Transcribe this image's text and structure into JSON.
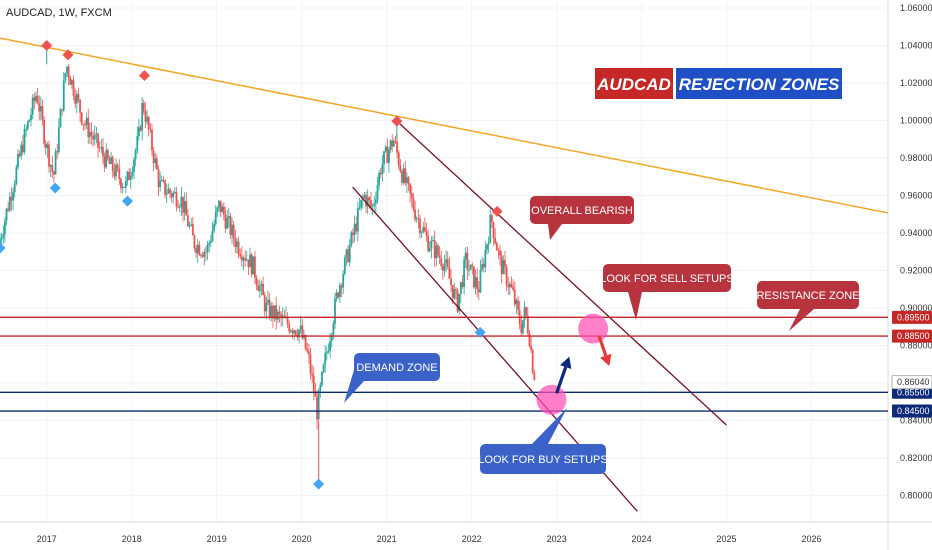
{
  "header": {
    "symbol_label": "AUDCAD, 1W, FXCM"
  },
  "title": {
    "part1": "AUDCAD",
    "part2": "REJECTION ZONES",
    "color1": "#c62828",
    "color2": "#1e4fc4"
  },
  "colors": {
    "up": "#26a69a",
    "down": "#ef5350",
    "trendline": "#f5a623",
    "channel": "#7b0f1f",
    "resistance": "#c62828",
    "demand": "#0d2a7a",
    "callout_red": "#b7343f",
    "callout_blue": "#3a62c9",
    "marker_red": "#ef5350",
    "marker_blue": "#42a5f5",
    "circle": "#ff4fb4"
  },
  "chart_data": {
    "type": "candlestick",
    "symbol": "AUDCAD",
    "timeframe": "1W",
    "source": "FXCM",
    "xlim": [
      2016.45,
      2026.9
    ],
    "ylim": [
      0.7858,
      1.0643
    ],
    "y_ticks": [
      1.06,
      1.04,
      1.02,
      1.0,
      0.98,
      0.96,
      0.94,
      0.92,
      0.9,
      0.88,
      0.86,
      0.84,
      0.82,
      0.8
    ],
    "y_tick_labels": [
      "1.06000",
      "1.04000",
      "1.02000",
      "1.00000",
      "0.98000",
      "0.96000",
      "0.94000",
      "0.92000",
      "0.90000",
      "0.88000",
      "0.86000",
      "0.84000",
      "0.82000",
      "0.80000"
    ],
    "x_ticks": [
      "2017",
      "2018",
      "2019",
      "2020",
      "2021",
      "2022",
      "2023",
      "2024",
      "2025",
      "2026"
    ],
    "x_tick_values": [
      2017,
      2018,
      2019,
      2020,
      2021,
      2022,
      2023,
      2024,
      2025,
      2026
    ],
    "price_path": [
      [
        2016.45,
        0.933
      ],
      [
        2016.75,
        0.99
      ],
      [
        2016.9,
        1.015
      ],
      [
        2017.0,
        0.99
      ],
      [
        2017.1,
        0.97
      ],
      [
        2017.25,
        1.03
      ],
      [
        2017.45,
        1.0
      ],
      [
        2017.7,
        0.98
      ],
      [
        2017.95,
        0.965
      ],
      [
        2018.1,
        0.99
      ],
      [
        2018.15,
        1.01
      ],
      [
        2018.35,
        0.965
      ],
      [
        2018.6,
        0.958
      ],
      [
        2018.75,
        0.935
      ],
      [
        2018.9,
        0.93
      ],
      [
        2019.05,
        0.955
      ],
      [
        2019.25,
        0.935
      ],
      [
        2019.45,
        0.922
      ],
      [
        2019.6,
        0.9
      ],
      [
        2019.8,
        0.893
      ],
      [
        2020.0,
        0.888
      ],
      [
        2020.1,
        0.873
      ],
      [
        2020.2,
        0.845
      ],
      [
        2020.3,
        0.873
      ],
      [
        2020.45,
        0.91
      ],
      [
        2020.6,
        0.935
      ],
      [
        2020.75,
        0.96
      ],
      [
        2020.85,
        0.953
      ],
      [
        2020.95,
        0.975
      ],
      [
        2021.1,
        0.99
      ],
      [
        2021.2,
        0.972
      ],
      [
        2021.35,
        0.952
      ],
      [
        2021.5,
        0.936
      ],
      [
        2021.7,
        0.924
      ],
      [
        2021.85,
        0.902
      ],
      [
        2021.95,
        0.925
      ],
      [
        2022.1,
        0.91
      ],
      [
        2022.25,
        0.948
      ],
      [
        2022.35,
        0.925
      ],
      [
        2022.5,
        0.908
      ],
      [
        2022.6,
        0.89
      ],
      [
        2022.65,
        0.898
      ],
      [
        2022.7,
        0.885
      ],
      [
        2022.75,
        0.865
      ]
    ],
    "last_price": 0.8604,
    "last_price_label": "0.86040",
    "trendline": {
      "x1": 2016.45,
      "y1": 1.044,
      "x2": 2026.9,
      "y2": 0.9507
    },
    "channel_upper": {
      "x1": 2021.12,
      "y1": 0.9997,
      "x2": 2025.0,
      "y2": 0.8375
    },
    "channel_lower": {
      "x1": 2020.6,
      "y1": 0.9645,
      "x2": 2023.95,
      "y2": 0.7915
    },
    "levels": [
      {
        "value": 0.895,
        "label": "0.89500",
        "zone": "resistance"
      },
      {
        "value": 0.885,
        "label": "0.88500",
        "zone": "resistance"
      },
      {
        "value": 0.855,
        "label": "0.85500",
        "zone": "demand"
      },
      {
        "value": 0.845,
        "label": "0.84500",
        "zone": "demand"
      }
    ],
    "swing_highs": [
      [
        2017.0,
        1.04
      ],
      [
        2017.25,
        1.035
      ],
      [
        2018.15,
        1.024
      ],
      [
        2021.12,
        0.9997
      ],
      [
        2022.3,
        0.9515
      ]
    ],
    "swing_lows": [
      [
        2016.45,
        0.932
      ],
      [
        2017.1,
        0.964
      ],
      [
        2017.95,
        0.957
      ],
      [
        2022.1,
        0.887
      ],
      [
        2020.2,
        0.806
      ]
    ],
    "arrows": [
      {
        "from": [
          2023.0,
          0.8545
        ],
        "to": [
          2023.15,
          0.874
        ],
        "color": "#0d2a7a"
      },
      {
        "from": [
          2023.5,
          0.885
        ],
        "to": [
          2023.62,
          0.869
        ],
        "color": "#e53935"
      }
    ],
    "circles": [
      [
        2022.94,
        0.851
      ],
      [
        2023.43,
        0.889
      ]
    ]
  },
  "callouts": {
    "overall_bearish": "OVERALL BEARISH",
    "sell_setups": "LOOK FOR SELL SETUPS",
    "resistance_zone": "RESISTANCE ZONE",
    "demand_zone": "DEMAND ZONE",
    "buy_setups": "LOOK FOR BUY SETUPS"
  }
}
